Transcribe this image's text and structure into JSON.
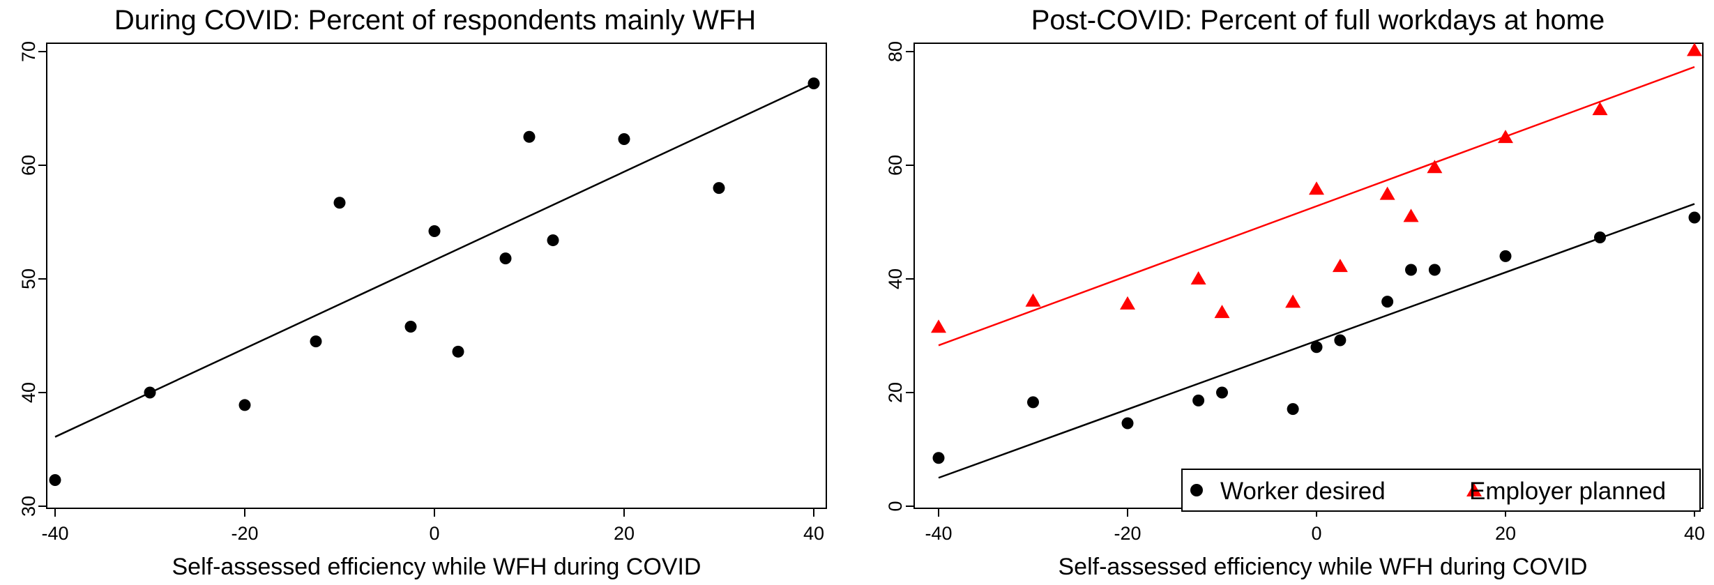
{
  "chart_data": [
    {
      "type": "scatter",
      "title": "During COVID: Percent of respondents mainly WFH",
      "xlabel": "Self-assessed efficiency while WFH during COVID",
      "ylabel": "",
      "xlim": [
        -40,
        40
      ],
      "ylim": [
        30,
        70
      ],
      "xticks": [
        -40,
        -20,
        0,
        20,
        40
      ],
      "yticks": [
        30,
        40,
        50,
        60,
        70
      ],
      "series": [
        {
          "marker": "circle",
          "color": "#000000",
          "x": [
            -40,
            -30,
            -20,
            -12.5,
            -10,
            -2.5,
            0,
            2.5,
            7.5,
            10,
            12.5,
            20,
            30,
            40
          ],
          "y": [
            32.3,
            40.0,
            38.9,
            44.5,
            56.7,
            45.8,
            54.2,
            43.6,
            51.8,
            62.5,
            53.4,
            62.3,
            58.0,
            67.2
          ]
        }
      ],
      "fit_lines": [
        {
          "color": "#000000",
          "x": [
            -40,
            40
          ],
          "y": [
            36.1,
            67.2
          ]
        }
      ],
      "grid": false
    },
    {
      "type": "scatter",
      "title": "Post-COVID: Percent of full workdays at home",
      "xlabel": "Self-assessed efficiency while WFH during COVID",
      "ylabel": "",
      "xlim": [
        -40,
        40
      ],
      "ylim": [
        0,
        80
      ],
      "xticks": [
        -40,
        -20,
        0,
        20,
        40
      ],
      "yticks": [
        0,
        20,
        40,
        60,
        80
      ],
      "legend_position": "bottom-right",
      "series": [
        {
          "name": "Worker desired",
          "marker": "circle",
          "color": "#000000",
          "x": [
            -40,
            -30,
            -20,
            -12.5,
            -10,
            -2.5,
            0,
            2.5,
            7.5,
            10,
            12.5,
            20,
            30,
            40
          ],
          "y": [
            8.5,
            18.3,
            14.6,
            18.6,
            20.0,
            17.1,
            28.0,
            29.2,
            36.0,
            41.6,
            41.6,
            44.0,
            47.3,
            50.8
          ]
        },
        {
          "name": "Employer planned",
          "marker": "triangle",
          "color": "#ff0000",
          "x": [
            -40,
            -30,
            -20,
            -12.5,
            -10,
            -2.5,
            0,
            2.5,
            7.5,
            10,
            12.5,
            20,
            30,
            40
          ],
          "y": [
            31.5,
            36.1,
            35.6,
            40.0,
            34.1,
            35.9,
            55.8,
            42.2,
            54.9,
            51.0,
            59.6,
            64.9,
            69.8,
            80.2
          ]
        }
      ],
      "fit_lines": [
        {
          "color": "#000000",
          "x": [
            -40,
            40
          ],
          "y": [
            5.0,
            53.2
          ]
        },
        {
          "color": "#ff0000",
          "x": [
            -40,
            40
          ],
          "y": [
            28.3,
            77.3
          ]
        }
      ],
      "grid": false
    }
  ]
}
